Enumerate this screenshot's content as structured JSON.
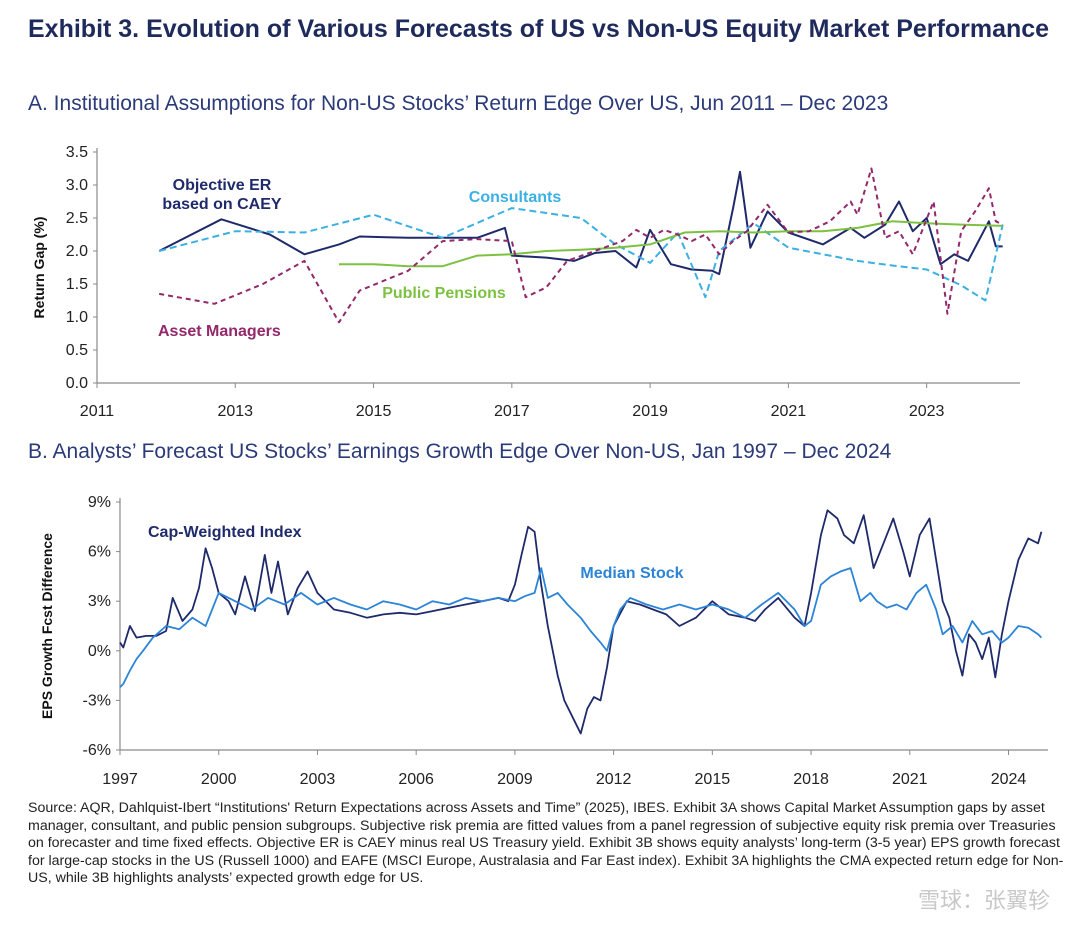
{
  "exhibit": {
    "title": "Exhibit 3. Evolution of Various Forecasts of US vs Non-US Equity Market Performance",
    "source_note": "Source: AQR, Dahlquist-Ibert “Institutions' Return Expectations across Assets and Time” (2025), IBES. Exhibit 3A shows Capital Market Assumption gaps by asset manager, consultant, and public pension subgroups. Subjective risk premia are fitted values from a panel regression of subjective equity risk premia over Treasuries on forecaster and time fixed effects. Objective ER is CAEY minus real US Treasury yield. Exhibit 3B shows equity analysts’ long-term (3-5 year) EPS growth forecast for large-cap stocks in the US (Russell 1000) and EAFE (MSCI Europe, Australasia and Far East index). Exhibit 3A highlights the CMA expected return edge for Non-US, while 3B highlights analysts’ expected growth edge for US.",
    "watermark": "雪球：张翼轸"
  },
  "chart_data": [
    {
      "id": "A",
      "type": "line",
      "title": "A. Institutional Assumptions for Non-US Stocks’ Return Edge Over US, Jun 2011 – Dec 2023",
      "ylabel": "Return Gap (%)",
      "xlabel": "",
      "xlim": [
        2011,
        2024.35
      ],
      "ylim": [
        0,
        3.5
      ],
      "x_ticks": [
        2011,
        2013,
        2015,
        2017,
        2019,
        2021,
        2023
      ],
      "y_ticks": [
        0.0,
        0.5,
        1.0,
        1.5,
        2.0,
        2.5,
        3.0,
        3.5
      ],
      "y_tick_labels": [
        "0.0",
        "0.5",
        "1.0",
        "1.5",
        "2.0",
        "2.5",
        "3.0",
        "3.5"
      ],
      "grid": false,
      "legend": "inline-labels",
      "series": [
        {
          "name": "Objective ER based on CAEY",
          "label_lines": [
            "Objective ER",
            "based on CAEY"
          ],
          "color": "#1f2a6b",
          "dash": "solid",
          "x": [
            2011.9,
            2012.8,
            2013.5,
            2014.0,
            2014.5,
            2014.8,
            2015.5,
            2016.0,
            2016.5,
            2016.9,
            2017.0,
            2017.5,
            2017.9,
            2018.2,
            2018.5,
            2018.8,
            2019.0,
            2019.3,
            2019.6,
            2019.9,
            2020.0,
            2020.2,
            2020.3,
            2020.45,
            2020.7,
            2021.0,
            2021.5,
            2021.9,
            2022.1,
            2022.4,
            2022.6,
            2022.8,
            2023.0,
            2023.2,
            2023.4,
            2023.6,
            2023.9,
            2024.0,
            2024.1
          ],
          "y": [
            2.0,
            2.48,
            2.25,
            1.95,
            2.1,
            2.22,
            2.2,
            2.2,
            2.2,
            2.35,
            1.93,
            1.9,
            1.85,
            1.97,
            2.0,
            1.75,
            2.32,
            1.8,
            1.72,
            1.7,
            1.65,
            2.65,
            3.2,
            2.05,
            2.6,
            2.28,
            2.1,
            2.35,
            2.2,
            2.4,
            2.75,
            2.3,
            2.5,
            1.8,
            1.95,
            1.85,
            2.45,
            2.07,
            2.07
          ]
        },
        {
          "name": "Consultants",
          "color": "#3bb0e3",
          "dash": "7,4",
          "x": [
            2011.9,
            2013.0,
            2014.0,
            2015.0,
            2016.0,
            2017.0,
            2018.0,
            2018.5,
            2019.0,
            2019.4,
            2019.8,
            2020.0,
            2020.5,
            2021.0,
            2021.5,
            2022.0,
            2022.5,
            2023.0,
            2023.5,
            2023.85,
            2024.1
          ],
          "y": [
            2.0,
            2.3,
            2.28,
            2.55,
            2.2,
            2.65,
            2.5,
            2.1,
            1.82,
            2.28,
            1.3,
            2.0,
            2.42,
            2.05,
            1.95,
            1.85,
            1.78,
            1.72,
            1.48,
            1.25,
            2.4
          ]
        },
        {
          "name": "Public Pensions",
          "color": "#7dc142",
          "dash": "solid",
          "x": [
            2014.5,
            2015.0,
            2015.5,
            2016.0,
            2016.5,
            2017.0,
            2017.5,
            2018.0,
            2018.5,
            2019.0,
            2019.5,
            2020.0,
            2020.5,
            2021.0,
            2021.5,
            2022.0,
            2022.5,
            2023.0,
            2023.5,
            2024.1
          ],
          "y": [
            1.8,
            1.8,
            1.77,
            1.77,
            1.93,
            1.95,
            2.0,
            2.02,
            2.05,
            2.1,
            2.28,
            2.3,
            2.28,
            2.3,
            2.3,
            2.35,
            2.45,
            2.42,
            2.4,
            2.38
          ]
        },
        {
          "name": "Asset Managers",
          "color": "#93286b",
          "dash": "5,4",
          "x": [
            2011.9,
            2012.7,
            2013.4,
            2014.0,
            2014.5,
            2014.8,
            2015.5,
            2016.0,
            2016.5,
            2017.0,
            2017.2,
            2017.5,
            2017.8,
            2018.2,
            2018.6,
            2018.8,
            2019.0,
            2019.2,
            2019.4,
            2019.6,
            2019.8,
            2020.0,
            2020.2,
            2020.4,
            2020.7,
            2021.0,
            2021.3,
            2021.6,
            2021.9,
            2022.0,
            2022.2,
            2022.4,
            2022.6,
            2022.8,
            2023.1,
            2023.3,
            2023.5,
            2023.7,
            2023.9,
            2024.0,
            2024.1
          ],
          "y": [
            1.35,
            1.2,
            1.5,
            1.85,
            0.92,
            1.4,
            1.7,
            2.15,
            2.18,
            2.15,
            1.3,
            1.45,
            1.85,
            2.0,
            2.15,
            2.32,
            2.2,
            2.32,
            2.25,
            2.15,
            2.25,
            1.95,
            2.15,
            2.3,
            2.7,
            2.28,
            2.3,
            2.45,
            2.75,
            2.55,
            3.25,
            2.2,
            2.3,
            1.95,
            2.75,
            1.05,
            2.3,
            2.6,
            2.95,
            2.45,
            2.4
          ]
        }
      ]
    },
    {
      "id": "B",
      "type": "line",
      "title": "B. Analysts’ Forecast US Stocks’ Earnings Growth Edge Over Non-US, Jan 1997 – Dec 2024",
      "ylabel": "EPS Growth Fcst Difference",
      "xlabel": "",
      "xlim": [
        1997,
        2025.2
      ],
      "ylim": [
        -6,
        9
      ],
      "x_ticks": [
        1997,
        2000,
        2003,
        2006,
        2009,
        2012,
        2015,
        2018,
        2021,
        2024
      ],
      "y_ticks": [
        -6,
        -3,
        0,
        3,
        6,
        9
      ],
      "y_tick_labels": [
        "-6%",
        "-3%",
        "0%",
        "3%",
        "6%",
        "9%"
      ],
      "grid": false,
      "legend": "inline-labels",
      "series": [
        {
          "name": "Cap-Weighted Index",
          "color": "#1f2a6b",
          "x": [
            1997.0,
            1997.1,
            1997.3,
            1997.5,
            1997.8,
            1998.1,
            1998.4,
            1998.6,
            1998.9,
            1999.2,
            1999.4,
            1999.6,
            1999.8,
            2000.0,
            2000.3,
            2000.5,
            2000.8,
            2001.1,
            2001.4,
            2001.6,
            2001.8,
            2002.1,
            2002.4,
            2002.7,
            2003.0,
            2003.5,
            2004.0,
            2004.5,
            2005.0,
            2005.5,
            2006.0,
            2006.5,
            2007.0,
            2007.5,
            2008.0,
            2008.5,
            2008.8,
            2009.0,
            2009.2,
            2009.4,
            2009.6,
            2009.8,
            2010.0,
            2010.3,
            2010.5,
            2010.8,
            2011.0,
            2011.2,
            2011.4,
            2011.6,
            2011.8,
            2012.0,
            2012.4,
            2012.8,
            2013.2,
            2013.6,
            2014.0,
            2014.5,
            2015.0,
            2015.5,
            2016.0,
            2016.3,
            2016.6,
            2017.0,
            2017.5,
            2017.8,
            2018.0,
            2018.3,
            2018.5,
            2018.8,
            2019.0,
            2019.3,
            2019.6,
            2019.9,
            2020.2,
            2020.5,
            2020.8,
            2021.0,
            2021.3,
            2021.6,
            2021.8,
            2022.0,
            2022.2,
            2022.4,
            2022.6,
            2022.8,
            2023.0,
            2023.2,
            2023.4,
            2023.6,
            2023.8,
            2024.0,
            2024.3,
            2024.6,
            2024.9,
            2025.0
          ],
          "y": [
            0.5,
            0.2,
            1.5,
            0.8,
            0.9,
            0.9,
            1.2,
            3.2,
            1.8,
            2.5,
            3.8,
            6.2,
            5.0,
            3.5,
            3.0,
            2.2,
            4.5,
            2.4,
            5.8,
            3.5,
            5.4,
            2.2,
            3.8,
            4.8,
            3.5,
            2.5,
            2.3,
            2.0,
            2.2,
            2.3,
            2.2,
            2.4,
            2.6,
            2.8,
            3.0,
            3.2,
            3.0,
            4.0,
            5.8,
            7.5,
            7.2,
            4.0,
            1.5,
            -1.5,
            -3.0,
            -4.2,
            -5.0,
            -3.5,
            -2.8,
            -3.0,
            -1.0,
            1.5,
            3.0,
            2.8,
            2.5,
            2.2,
            1.5,
            2.0,
            3.0,
            2.2,
            2.0,
            1.8,
            2.5,
            3.2,
            2.0,
            1.5,
            3.5,
            7.0,
            8.5,
            8.0,
            7.0,
            6.5,
            8.2,
            5.0,
            6.5,
            8.0,
            6.0,
            4.5,
            7.0,
            8.0,
            5.5,
            3.0,
            2.0,
            0.0,
            -1.5,
            1.0,
            0.5,
            -0.5,
            0.8,
            -1.6,
            1.0,
            3.0,
            5.5,
            6.8,
            6.5,
            7.2
          ]
        },
        {
          "name": "Median Stock",
          "color": "#2c84d6",
          "x": [
            1997.0,
            1997.1,
            1997.3,
            1997.5,
            1997.7,
            1998.0,
            1998.4,
            1998.8,
            1999.2,
            1999.6,
            2000.0,
            2000.5,
            2001.0,
            2001.5,
            2002.0,
            2002.5,
            2003.0,
            2003.5,
            2004.0,
            2004.5,
            2005.0,
            2005.5,
            2006.0,
            2006.5,
            2007.0,
            2007.5,
            2008.0,
            2008.5,
            2009.0,
            2009.3,
            2009.6,
            2009.8,
            2010.0,
            2010.3,
            2010.6,
            2011.0,
            2011.3,
            2011.6,
            2011.8,
            2012.0,
            2012.2,
            2012.5,
            2013.0,
            2013.5,
            2014.0,
            2014.5,
            2015.0,
            2015.5,
            2016.0,
            2016.5,
            2017.0,
            2017.5,
            2017.8,
            2018.0,
            2018.3,
            2018.6,
            2018.9,
            2019.2,
            2019.5,
            2019.8,
            2020.0,
            2020.3,
            2020.6,
            2020.9,
            2021.2,
            2021.5,
            2021.8,
            2022.0,
            2022.3,
            2022.6,
            2022.9,
            2023.2,
            2023.5,
            2023.8,
            2024.0,
            2024.3,
            2024.6,
            2024.9,
            2025.0
          ],
          "y": [
            -2.2,
            -2.0,
            -1.2,
            -0.5,
            0.0,
            0.8,
            1.5,
            1.3,
            2.0,
            1.5,
            3.5,
            3.0,
            2.5,
            3.2,
            2.8,
            3.5,
            2.8,
            3.2,
            2.8,
            2.5,
            3.0,
            2.8,
            2.5,
            3.0,
            2.8,
            3.2,
            3.0,
            3.2,
            3.0,
            3.3,
            3.5,
            5.0,
            3.2,
            3.5,
            2.8,
            2.0,
            1.2,
            0.5,
            0.0,
            1.5,
            2.5,
            3.2,
            2.8,
            2.5,
            2.8,
            2.5,
            2.8,
            2.5,
            2.0,
            2.8,
            3.5,
            2.5,
            1.5,
            1.8,
            4.0,
            4.5,
            4.8,
            5.0,
            3.0,
            3.5,
            3.0,
            2.6,
            2.8,
            2.5,
            3.5,
            4.0,
            2.5,
            1.0,
            1.5,
            0.5,
            1.8,
            1.0,
            1.2,
            0.5,
            0.8,
            1.5,
            1.4,
            1.0,
            0.8
          ]
        }
      ]
    }
  ]
}
